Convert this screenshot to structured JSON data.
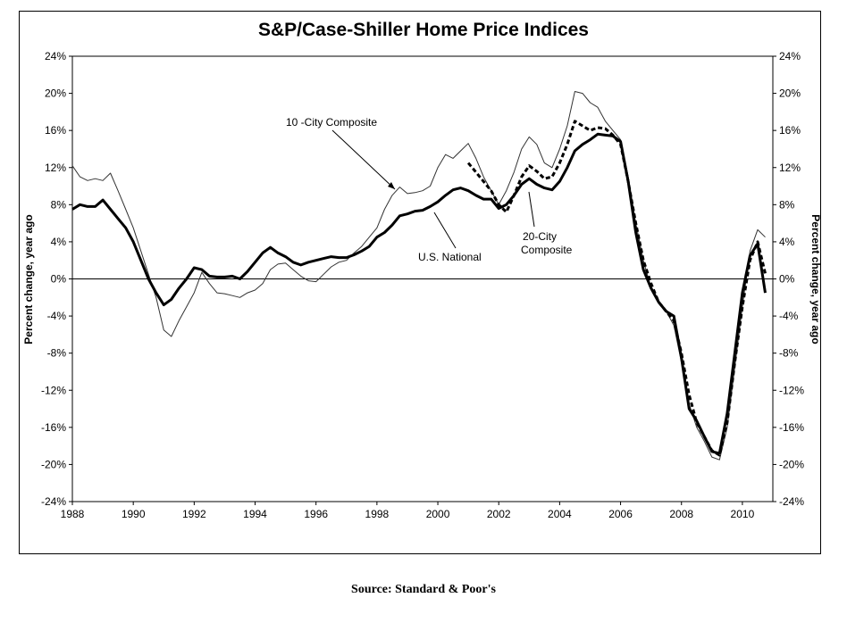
{
  "chart_data": {
    "type": "line",
    "title": "S&P/Case-Shiller Home Price Indices",
    "source": "Source: Standard & Poor's",
    "ylabel_left": "Percent change, year ago",
    "ylabel_right": "Percent change, year ago",
    "xlim": [
      1988,
      2011
    ],
    "ylim": [
      -24,
      24
    ],
    "x_ticks": [
      "1988",
      "1990",
      "1992",
      "1994",
      "1996",
      "1998",
      "2000",
      "2002",
      "2004",
      "2006",
      "2008",
      "2010"
    ],
    "y_ticks": [
      "24%",
      "20%",
      "16%",
      "12%",
      "8%",
      "4%",
      "0%",
      "-4%",
      "-8%",
      "-12%",
      "-16%",
      "-20%",
      "-24%"
    ],
    "legend": "none",
    "grid": false,
    "annotations": {
      "ten_city": "10 -City Composite",
      "twenty_city_1": "20-City",
      "twenty_city_2": "Composite",
      "national": "U.S. National"
    },
    "series": [
      {
        "name": "10 -City Composite",
        "style": "thin",
        "color": "#333333",
        "points": [
          [
            1988.0,
            12.2
          ],
          [
            1988.25,
            11.0
          ],
          [
            1988.5,
            10.6
          ],
          [
            1988.75,
            10.8
          ],
          [
            1989.0,
            10.6
          ],
          [
            1989.25,
            11.4
          ],
          [
            1989.5,
            9.5
          ],
          [
            1989.75,
            7.5
          ],
          [
            1990.0,
            5.5
          ],
          [
            1990.25,
            3.0
          ],
          [
            1990.5,
            0.5
          ],
          [
            1990.75,
            -2.0
          ],
          [
            1991.0,
            -5.5
          ],
          [
            1991.25,
            -6.2
          ],
          [
            1991.5,
            -4.5
          ],
          [
            1991.75,
            -3.0
          ],
          [
            1992.0,
            -1.5
          ],
          [
            1992.25,
            0.7
          ],
          [
            1992.5,
            -0.5
          ],
          [
            1992.75,
            -1.5
          ],
          [
            1993.0,
            -1.6
          ],
          [
            1993.25,
            -1.8
          ],
          [
            1993.5,
            -2.0
          ],
          [
            1993.75,
            -1.5
          ],
          [
            1994.0,
            -1.2
          ],
          [
            1994.25,
            -0.5
          ],
          [
            1994.5,
            1.0
          ],
          [
            1994.75,
            1.6
          ],
          [
            1995.0,
            1.7
          ],
          [
            1995.25,
            1.0
          ],
          [
            1995.5,
            0.3
          ],
          [
            1995.75,
            -0.2
          ],
          [
            1996.0,
            -0.3
          ],
          [
            1996.25,
            0.5
          ],
          [
            1996.5,
            1.3
          ],
          [
            1996.75,
            1.8
          ],
          [
            1997.0,
            2.0
          ],
          [
            1997.25,
            2.8
          ],
          [
            1997.5,
            3.5
          ],
          [
            1997.75,
            4.5
          ],
          [
            1998.0,
            5.5
          ],
          [
            1998.25,
            7.5
          ],
          [
            1998.5,
            9.0
          ],
          [
            1998.75,
            9.9
          ],
          [
            1999.0,
            9.2
          ],
          [
            1999.25,
            9.3
          ],
          [
            1999.5,
            9.5
          ],
          [
            1999.75,
            10.0
          ],
          [
            2000.0,
            12.0
          ],
          [
            2000.25,
            13.4
          ],
          [
            2000.5,
            13.0
          ],
          [
            2000.75,
            13.8
          ],
          [
            2001.0,
            14.6
          ],
          [
            2001.25,
            13.0
          ],
          [
            2001.5,
            11.0
          ],
          [
            2001.75,
            9.5
          ],
          [
            2002.0,
            8.0
          ],
          [
            2002.25,
            9.5
          ],
          [
            2002.5,
            11.5
          ],
          [
            2002.75,
            14.0
          ],
          [
            2003.0,
            15.3
          ],
          [
            2003.25,
            14.5
          ],
          [
            2003.5,
            12.5
          ],
          [
            2003.75,
            12.0
          ],
          [
            2004.0,
            14.0
          ],
          [
            2004.25,
            16.5
          ],
          [
            2004.5,
            20.2
          ],
          [
            2004.75,
            20.0
          ],
          [
            2005.0,
            19.0
          ],
          [
            2005.25,
            18.5
          ],
          [
            2005.5,
            17.0
          ],
          [
            2005.75,
            16.0
          ],
          [
            2006.0,
            15.0
          ],
          [
            2006.25,
            11.0
          ],
          [
            2006.5,
            6.0
          ],
          [
            2006.75,
            2.0
          ],
          [
            2007.0,
            -1.0
          ],
          [
            2007.25,
            -2.5
          ],
          [
            2007.5,
            -3.5
          ],
          [
            2007.75,
            -5.0
          ],
          [
            2008.0,
            -9.0
          ],
          [
            2008.25,
            -13.5
          ],
          [
            2008.5,
            -16.0
          ],
          [
            2008.75,
            -17.5
          ],
          [
            2009.0,
            -19.2
          ],
          [
            2009.25,
            -19.5
          ],
          [
            2009.5,
            -16.0
          ],
          [
            2009.75,
            -9.5
          ],
          [
            2010.0,
            -3.0
          ],
          [
            2010.25,
            3.0
          ],
          [
            2010.5,
            5.3
          ],
          [
            2010.75,
            4.5
          ]
        ]
      },
      {
        "name": "20-City Composite",
        "style": "dashed",
        "color": "#000000",
        "points": [
          [
            2001.0,
            12.5
          ],
          [
            2001.25,
            11.5
          ],
          [
            2001.5,
            10.5
          ],
          [
            2001.75,
            9.5
          ],
          [
            2002.0,
            8.0
          ],
          [
            2002.25,
            7.2
          ],
          [
            2002.5,
            9.0
          ],
          [
            2002.75,
            11.0
          ],
          [
            2003.0,
            12.2
          ],
          [
            2003.25,
            11.6
          ],
          [
            2003.5,
            10.8
          ],
          [
            2003.75,
            11.0
          ],
          [
            2004.0,
            12.5
          ],
          [
            2004.25,
            14.5
          ],
          [
            2004.5,
            17.0
          ],
          [
            2004.75,
            16.5
          ],
          [
            2005.0,
            16.0
          ],
          [
            2005.25,
            16.3
          ],
          [
            2005.5,
            16.2
          ],
          [
            2005.75,
            15.5
          ],
          [
            2006.0,
            14.5
          ],
          [
            2006.25,
            10.5
          ],
          [
            2006.5,
            6.0
          ],
          [
            2006.75,
            2.0
          ],
          [
            2007.0,
            -0.5
          ],
          [
            2007.25,
            -2.5
          ],
          [
            2007.5,
            -3.5
          ],
          [
            2007.75,
            -4.5
          ],
          [
            2008.0,
            -8.0
          ],
          [
            2008.25,
            -12.5
          ],
          [
            2008.5,
            -15.5
          ],
          [
            2008.75,
            -17.0
          ],
          [
            2009.0,
            -18.5
          ],
          [
            2009.25,
            -19.0
          ],
          [
            2009.5,
            -15.5
          ],
          [
            2009.75,
            -9.0
          ],
          [
            2010.0,
            -3.0
          ],
          [
            2010.25,
            2.0
          ],
          [
            2010.5,
            4.0
          ],
          [
            2010.75,
            0.6
          ]
        ]
      },
      {
        "name": "U.S. National",
        "style": "thick",
        "color": "#000000",
        "points": [
          [
            1988.0,
            7.5
          ],
          [
            1988.25,
            8.0
          ],
          [
            1988.5,
            7.8
          ],
          [
            1988.75,
            7.8
          ],
          [
            1989.0,
            8.5
          ],
          [
            1989.25,
            7.5
          ],
          [
            1989.5,
            6.5
          ],
          [
            1989.75,
            5.5
          ],
          [
            1990.0,
            4.0
          ],
          [
            1990.25,
            2.0
          ],
          [
            1990.5,
            0.0
          ],
          [
            1990.75,
            -1.5
          ],
          [
            1991.0,
            -2.8
          ],
          [
            1991.25,
            -2.2
          ],
          [
            1991.5,
            -1.0
          ],
          [
            1991.75,
            0.0
          ],
          [
            1992.0,
            1.2
          ],
          [
            1992.25,
            1.0
          ],
          [
            1992.5,
            0.3
          ],
          [
            1992.75,
            0.2
          ],
          [
            1993.0,
            0.2
          ],
          [
            1993.25,
            0.3
          ],
          [
            1993.5,
            0.0
          ],
          [
            1993.75,
            0.8
          ],
          [
            1994.0,
            1.8
          ],
          [
            1994.25,
            2.8
          ],
          [
            1994.5,
            3.4
          ],
          [
            1994.75,
            2.8
          ],
          [
            1995.0,
            2.4
          ],
          [
            1995.25,
            1.8
          ],
          [
            1995.5,
            1.5
          ],
          [
            1995.75,
            1.8
          ],
          [
            1996.0,
            2.0
          ],
          [
            1996.25,
            2.2
          ],
          [
            1996.5,
            2.4
          ],
          [
            1996.75,
            2.3
          ],
          [
            1997.0,
            2.3
          ],
          [
            1997.25,
            2.6
          ],
          [
            1997.5,
            3.0
          ],
          [
            1997.75,
            3.5
          ],
          [
            1998.0,
            4.5
          ],
          [
            1998.25,
            5.0
          ],
          [
            1998.5,
            5.8
          ],
          [
            1998.75,
            6.8
          ],
          [
            1999.0,
            7.0
          ],
          [
            1999.25,
            7.3
          ],
          [
            1999.5,
            7.4
          ],
          [
            1999.75,
            7.8
          ],
          [
            2000.0,
            8.3
          ],
          [
            2000.25,
            9.0
          ],
          [
            2000.5,
            9.6
          ],
          [
            2000.75,
            9.8
          ],
          [
            2001.0,
            9.5
          ],
          [
            2001.25,
            9.0
          ],
          [
            2001.5,
            8.6
          ],
          [
            2001.75,
            8.6
          ],
          [
            2002.0,
            7.6
          ],
          [
            2002.25,
            8.0
          ],
          [
            2002.5,
            9.0
          ],
          [
            2002.75,
            10.2
          ],
          [
            2003.0,
            10.8
          ],
          [
            2003.25,
            10.2
          ],
          [
            2003.5,
            9.8
          ],
          [
            2003.75,
            9.6
          ],
          [
            2004.0,
            10.5
          ],
          [
            2004.25,
            12.0
          ],
          [
            2004.5,
            13.8
          ],
          [
            2004.75,
            14.5
          ],
          [
            2005.0,
            15.0
          ],
          [
            2005.25,
            15.6
          ],
          [
            2005.5,
            15.5
          ],
          [
            2005.75,
            15.4
          ],
          [
            2006.0,
            14.8
          ],
          [
            2006.25,
            10.5
          ],
          [
            2006.5,
            5.0
          ],
          [
            2006.75,
            1.0
          ],
          [
            2007.0,
            -1.0
          ],
          [
            2007.25,
            -2.5
          ],
          [
            2007.5,
            -3.5
          ],
          [
            2007.75,
            -4.0
          ],
          [
            2008.0,
            -8.5
          ],
          [
            2008.25,
            -14.0
          ],
          [
            2008.5,
            -15.3
          ],
          [
            2008.75,
            -17.0
          ],
          [
            2009.0,
            -18.6
          ],
          [
            2009.25,
            -18.8
          ],
          [
            2009.5,
            -14.5
          ],
          [
            2009.75,
            -8.0
          ],
          [
            2010.0,
            -1.5
          ],
          [
            2010.25,
            2.5
          ],
          [
            2010.5,
            3.8
          ],
          [
            2010.75,
            -1.5
          ]
        ]
      }
    ]
  }
}
